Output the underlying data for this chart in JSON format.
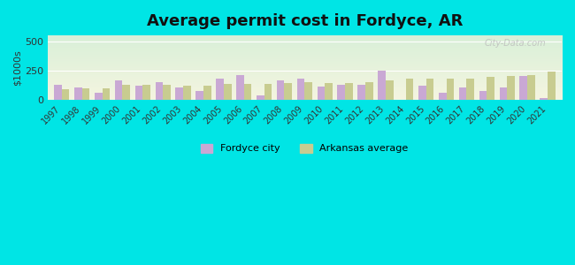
{
  "title": "Average permit cost in Fordyce, AR",
  "ylabel": "$1000s",
  "years": [
    1997,
    1998,
    1999,
    2000,
    2001,
    2002,
    2003,
    2004,
    2005,
    2006,
    2007,
    2008,
    2009,
    2010,
    2011,
    2012,
    2013,
    2014,
    2015,
    2016,
    2017,
    2018,
    2019,
    2020,
    2021
  ],
  "fordyce": [
    130,
    110,
    60,
    170,
    120,
    155,
    110,
    80,
    185,
    215,
    40,
    165,
    185,
    115,
    130,
    130,
    250,
    0,
    125,
    65,
    105,
    75,
    110,
    205,
    15
  ],
  "arkansas": [
    95,
    100,
    100,
    130,
    130,
    130,
    125,
    125,
    135,
    135,
    135,
    145,
    150,
    145,
    145,
    155,
    170,
    185,
    185,
    185,
    185,
    195,
    205,
    215,
    240
  ],
  "fordyce_color": "#c9a8d4",
  "arkansas_color": "#c8cc90",
  "background_outer": "#00e5e5",
  "ylim": [
    0,
    550
  ],
  "yticks": [
    0,
    250,
    500
  ],
  "bar_width": 0.38,
  "legend_fordyce": "Fordyce city",
  "legend_arkansas": "Arkansas average",
  "watermark": "City-Data.com"
}
